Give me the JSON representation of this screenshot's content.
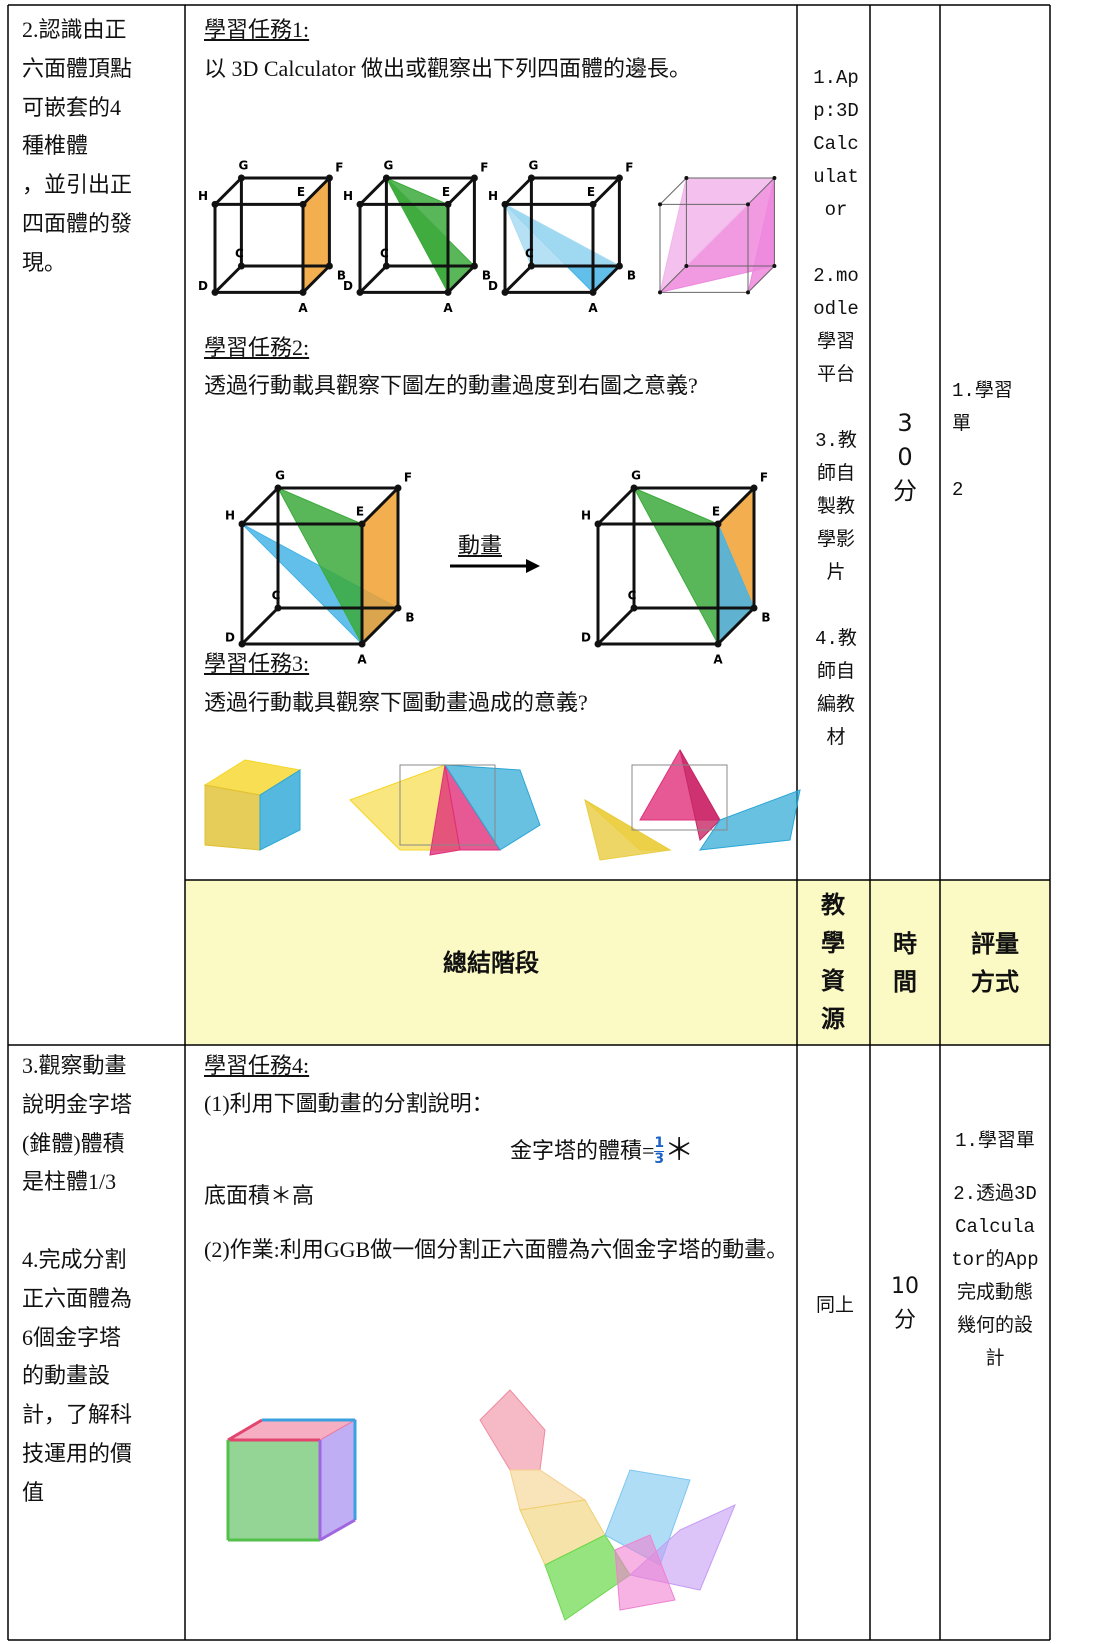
{
  "rows": [
    {
      "objective": [
        [
          "2.認識由正",
          "六面體頂點",
          "可嵌套的4",
          "種椎體",
          "，並引出正",
          "四面體的發",
          "現。"
        ]
      ],
      "tasks": [
        {
          "title": "學習任務1:",
          "text": "以 3D Calculator 做出或觀察出下列四面體的邊長。"
        },
        {
          "title": "學習任務2:",
          "text": "透過行動載具觀察下圖左的動畫過度到右圖之意義?",
          "arrow_label": "動畫"
        },
        {
          "title": "學習任務3:",
          "text": "透過行動載具觀察下圖動畫過成的意義?"
        }
      ],
      "resources": [
        "1.App:3D Calculator",
        "2.moodle學習平台",
        "3.教師自製教學影片",
        "4.教師自編教材"
      ],
      "time": "30分",
      "assessment": [
        "1.學習單",
        "2"
      ]
    },
    {
      "stage": "總結階段",
      "resources_header": "教學資源",
      "time_header": "時間",
      "assessment_header": "評量方式"
    },
    {
      "objective": [
        [
          "3.觀察動畫",
          "說明金字塔",
          "(錐體)體積",
          "是柱體1/3"
        ],
        [
          "4.完成分割",
          "正六面體為",
          "6個金字塔",
          "的動畫設",
          "計，了解科",
          "技運用的價",
          "值"
        ]
      ],
      "task": {
        "title": "學習任務4:",
        "line1": "(1)利用下圖動畫的分割說明：",
        "formula": {
          "prefix": "金字塔的體積=",
          "numerator": "1",
          "denominator": "3",
          "suffix": "＊"
        },
        "line2": "底面積＊高",
        "line3": "(2)作業:利用GGB做一個分割正六面體為六個金字塔的動畫。"
      },
      "resources": "同上",
      "time": "10分",
      "assessment": [
        "1.學習單",
        "2.透過3D Calculator的App完成動態幾何的設計"
      ]
    }
  ],
  "cube_labels": [
    "A",
    "B",
    "C",
    "D",
    "E",
    "F",
    "G",
    "H"
  ]
}
